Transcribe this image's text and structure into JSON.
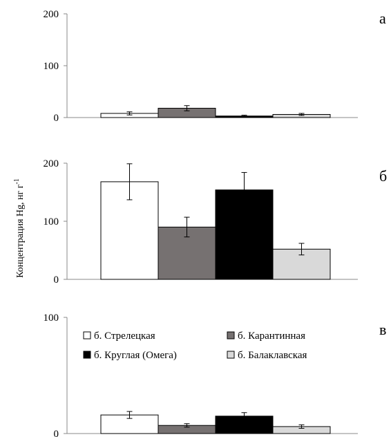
{
  "figure": {
    "ylabel": "Концентрация Hg, нг г",
    "ylabel_superscript": "-1"
  },
  "legend": [
    {
      "label": "б. Стрелецкая",
      "color": "#ffffff"
    },
    {
      "label": "б. Карантинная",
      "color": "#767171"
    },
    {
      "label": "б. Круглая (Омега)",
      "color": "#000000"
    },
    {
      "label": "б. Балаклавская",
      "color": "#d9d9d9"
    }
  ],
  "chart_data": [
    {
      "type": "bar",
      "panel_label": "а",
      "ylim": [
        0,
        200
      ],
      "yticks": [
        0,
        100,
        200
      ],
      "series": [
        {
          "name": "б. Стрелецкая",
          "color": "#ffffff",
          "values": [
            8
          ],
          "errors": [
            3
          ]
        },
        {
          "name": "б. Карантинная",
          "color": "#767171",
          "values": [
            18
          ],
          "errors": [
            5
          ]
        },
        {
          "name": "б. Круглая (Омега)",
          "color": "#000000",
          "values": [
            3
          ],
          "errors": [
            1.5
          ]
        },
        {
          "name": "б. Балаклавская",
          "color": "#d9d9d9",
          "values": [
            6
          ],
          "errors": [
            2
          ]
        }
      ],
      "grid": false,
      "legend_placement": "none"
    },
    {
      "type": "bar",
      "panel_label": "б",
      "ylim": [
        0,
        200
      ],
      "yticks": [
        0,
        100,
        200
      ],
      "series": [
        {
          "name": "б. Стрелецкая",
          "color": "#ffffff",
          "values": [
            168
          ],
          "errors": [
            31
          ]
        },
        {
          "name": "б. Карантинная",
          "color": "#767171",
          "values": [
            90
          ],
          "errors": [
            17
          ]
        },
        {
          "name": "б. Круглая (Омега)",
          "color": "#000000",
          "values": [
            154
          ],
          "errors": [
            30
          ]
        },
        {
          "name": "б. Балаклавская",
          "color": "#d9d9d9",
          "values": [
            52
          ],
          "errors": [
            10
          ]
        }
      ],
      "grid": false,
      "legend_placement": "none"
    },
    {
      "type": "bar",
      "panel_label": "в",
      "ylim": [
        0,
        100
      ],
      "yticks": [
        0,
        100
      ],
      "series": [
        {
          "name": "б. Стрелецкая",
          "color": "#ffffff",
          "values": [
            16
          ],
          "errors": [
            3
          ]
        },
        {
          "name": "б. Карантинная",
          "color": "#767171",
          "values": [
            7
          ],
          "errors": [
            1.5
          ]
        },
        {
          "name": "б. Круглая (Омега)",
          "color": "#000000",
          "values": [
            15
          ],
          "errors": [
            3
          ]
        },
        {
          "name": "б. Балаклавская",
          "color": "#d9d9d9",
          "values": [
            6
          ],
          "errors": [
            1.5
          ]
        }
      ],
      "grid": false,
      "legend_placement": "top"
    }
  ]
}
